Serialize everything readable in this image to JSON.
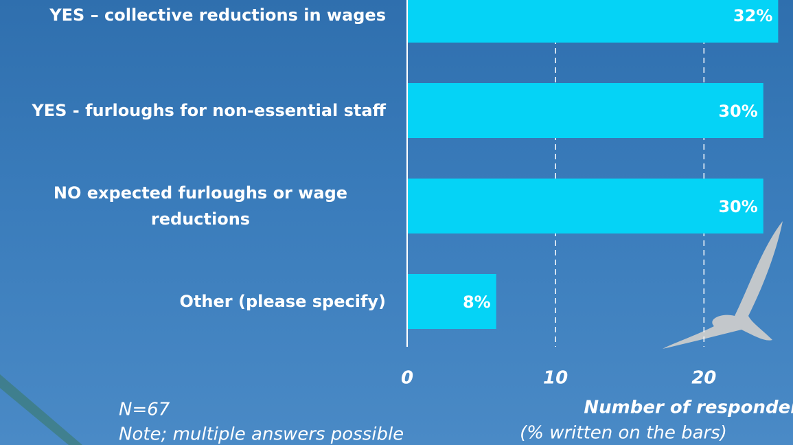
{
  "chart_data": {
    "type": "barh",
    "categories": [
      "YES – collective reductions in wages",
      "YES - furloughs for non-essential staff",
      "NO expected furloughs or wage reductions",
      "Other (please specify)"
    ],
    "values": [
      25,
      24,
      24,
      6
    ],
    "value_labels": [
      "32%",
      "30%",
      "30%",
      "8%"
    ],
    "color": "#05d3f6",
    "xlim": [
      0,
      26
    ],
    "xticks": [
      0,
      10,
      20
    ],
    "grid": true,
    "x_label": "Number of  respondents",
    "x_sublabel": "(% written on the bars)",
    "notes": [
      "N=67",
      "Note; multiple answers possible"
    ]
  }
}
